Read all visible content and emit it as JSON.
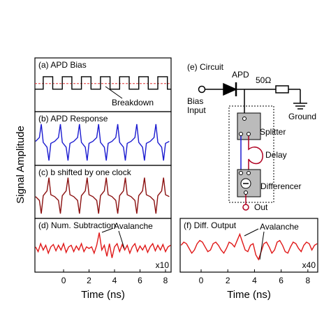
{
  "figure": {
    "y_label": "Signal Amplitude"
  },
  "chart_data": [
    {
      "type": "line",
      "label": "(a) APD Bias",
      "annotation": "Breakdown",
      "x": [
        -2.25,
        -1.6,
        -1.6,
        -0.85,
        -0.85,
        -0.1,
        -0.1,
        0.65,
        0.65,
        1.4,
        1.4,
        2.15,
        2.15,
        2.9,
        2.9,
        3.65,
        3.65,
        4.4,
        4.4,
        5.15,
        5.15,
        5.9,
        5.9,
        6.65,
        6.65,
        7.4,
        7.4,
        8.15,
        8.15,
        8.44
      ],
      "series": [
        {
          "color": "#000000",
          "values": [
            0,
            0,
            1,
            1,
            0,
            0,
            1,
            1,
            0,
            0,
            1,
            1,
            0,
            0,
            1,
            1,
            0,
            0,
            1,
            1,
            0,
            0,
            1,
            1,
            0,
            0,
            1,
            1,
            0,
            0
          ]
        }
      ],
      "threshold": 0.45,
      "threshold_color": "#e03030",
      "xlim": [
        -2.25,
        8.44
      ],
      "ylim": [
        -1.8,
        2.5
      ]
    },
    {
      "type": "line",
      "label": "(b) APD Response",
      "x": [
        -2.2,
        -1.9,
        -1.75,
        -1.6,
        -1.3,
        -1.15,
        -1.0,
        -0.7,
        -0.4,
        -0.25,
        -0.1,
        0.2,
        0.35,
        0.5,
        0.8,
        1.1,
        1.25,
        1.4,
        1.7,
        1.85,
        2.0,
        2.3,
        2.6,
        2.75,
        2.9,
        3.2,
        3.35,
        3.5,
        3.8,
        4.1,
        4.25,
        4.4,
        4.7,
        4.85,
        5.0,
        5.3,
        5.6,
        5.75,
        5.9,
        6.2,
        6.35,
        6.5,
        6.8,
        7.1,
        7.25,
        7.4,
        7.7,
        7.85,
        8.0,
        8.3
      ],
      "series": [
        {
          "color": "#1a1ad0",
          "values": [
            0.05,
            0.25,
            0.95,
            0,
            -0.25,
            -0.95,
            -0.05,
            0.05,
            0.25,
            0.95,
            0,
            -0.25,
            -0.95,
            -0.05,
            0.05,
            0.25,
            0.95,
            0,
            -0.25,
            -0.95,
            -0.05,
            0.05,
            0.25,
            0.95,
            0,
            -0.25,
            -0.95,
            -0.05,
            0.05,
            0.25,
            0.95,
            0,
            -0.25,
            -0.95,
            -0.05,
            0.05,
            0.25,
            0.95,
            0,
            -0.25,
            -0.95,
            -0.05,
            0.05,
            0.25,
            0.95,
            0,
            -0.25,
            -0.95,
            -0.05,
            0.05
          ]
        }
      ],
      "xlim": [
        -2.25,
        8.44
      ],
      "ylim": [
        -1.2,
        1.6
      ]
    },
    {
      "type": "line",
      "label": "(c) b shifted by one clock",
      "x": [
        -2.2,
        -1.9,
        -1.75,
        -1.6,
        -1.3,
        -1.15,
        -1.0,
        -0.7,
        -0.4,
        -0.25,
        -0.1,
        0.2,
        0.35,
        0.5,
        0.8,
        1.1,
        1.25,
        1.4,
        1.7,
        1.85,
        2.0,
        2.3,
        2.6,
        2.75,
        2.9,
        3.2,
        3.35,
        3.5,
        3.8,
        4.1,
        4.25,
        4.4,
        4.7,
        4.85,
        5.0,
        5.3,
        5.6,
        5.75,
        5.9,
        6.2,
        6.35,
        6.5,
        6.8,
        7.1,
        7.25,
        7.4,
        7.7,
        7.85,
        8.0,
        8.3
      ],
      "series": [
        {
          "color": "#8b1010",
          "values": [
            -0.05,
            -0.25,
            -0.95,
            0,
            0.25,
            0.95,
            0.05,
            -0.05,
            -0.25,
            -0.95,
            0,
            0.25,
            0.95,
            0.05,
            -0.05,
            -0.25,
            -0.95,
            0,
            0.25,
            0.95,
            0.05,
            -0.05,
            -0.25,
            -0.95,
            0,
            0.25,
            0.95,
            0.05,
            -0.05,
            -0.25,
            -0.95,
            0,
            0.25,
            0.95,
            0.05,
            -0.05,
            -0.25,
            -0.95,
            0,
            0.25,
            0.95,
            0.05,
            -0.05,
            -0.25,
            -0.95,
            0,
            0.25,
            0.95,
            0.05,
            -0.05
          ]
        }
      ],
      "xlim": [
        -2.25,
        8.44
      ],
      "ylim": [
        -1.2,
        1.6
      ]
    },
    {
      "type": "line",
      "label": "(d) Num. Subtraction",
      "annotation": "Avalanche",
      "scale_label": "x10",
      "x_label": "Time (ns)",
      "x": [
        -2.2,
        -2.0,
        -1.8,
        -1.6,
        -1.4,
        -1.2,
        -1.0,
        -0.8,
        -0.6,
        -0.4,
        -0.2,
        0,
        0.2,
        0.4,
        0.6,
        0.8,
        1.0,
        1.2,
        1.4,
        1.6,
        1.8,
        2.0,
        2.2,
        2.4,
        2.6,
        2.8,
        3.0,
        3.2,
        3.4,
        3.6,
        3.8,
        4.0,
        4.2,
        4.4,
        4.6,
        4.8,
        5.0,
        5.2,
        5.4,
        5.6,
        5.8,
        6.0,
        6.2,
        6.4,
        6.6,
        6.8,
        7.0,
        7.2,
        7.4,
        7.6,
        7.8,
        8.0,
        8.2,
        8.4
      ],
      "series": [
        {
          "color": "#e01818",
          "values": [
            0.1,
            -0.2,
            0.3,
            -0.1,
            0.2,
            -0.3,
            0.1,
            0.25,
            -0.15,
            0.2,
            -0.1,
            0.3,
            -0.25,
            0.1,
            0.2,
            -0.2,
            0.15,
            -0.1,
            0.3,
            -0.2,
            0.1,
            0.0,
            0.1,
            -0.3,
            0.2,
            1.0,
            -0.1,
            0.2,
            -0.5,
            0.3,
            -0.6,
            0.1,
            0.3,
            -0.2,
            0.25,
            -0.1,
            0.2,
            -0.3,
            0.1,
            0.3,
            -0.2,
            0.15,
            -0.1,
            0.2,
            -0.25,
            0.1,
            0.3,
            -0.15,
            0.2,
            -0.1,
            0.25,
            -0.2,
            0.1,
            0.2
          ]
        }
      ],
      "xlim": [
        -2.25,
        8.44
      ],
      "ylim": [
        -1.5,
        1.9
      ],
      "xticks": [
        0,
        2,
        4,
        6,
        8
      ]
    },
    {
      "type": "line",
      "label": "(f) Diff. Output",
      "annotation": "Avalanche",
      "scale_label": "x40",
      "x_label": "Time (ns)",
      "x": [
        -1.5,
        -1.3,
        -1.1,
        -0.9,
        -0.7,
        -0.5,
        -0.3,
        -0.1,
        0.1,
        0.3,
        0.5,
        0.7,
        0.9,
        1.1,
        1.3,
        1.5,
        1.7,
        1.9,
        2.1,
        2.3,
        2.5,
        2.7,
        2.9,
        3.1,
        3.3,
        3.5,
        3.7,
        3.9,
        4.1,
        4.3,
        4.5,
        4.7,
        4.9,
        5.1,
        5.3,
        5.5,
        5.7,
        5.9,
        6.1,
        6.3,
        6.5,
        6.7,
        6.9,
        7.1,
        7.3,
        7.5,
        7.7,
        7.9,
        8.1,
        8.3,
        8.5,
        8.7
      ],
      "series": [
        {
          "color": "#e01818",
          "values": [
            0.2,
            0.4,
            0.3,
            0.0,
            -0.3,
            -0.1,
            0.3,
            0.5,
            0.4,
            0.1,
            -0.2,
            -0.1,
            0.3,
            0.4,
            0.2,
            -0.1,
            -0.3,
            0.0,
            0.4,
            0.3,
            0.1,
            0.5,
            0.9,
            0.4,
            -0.1,
            -0.2,
            0.2,
            0.3,
            -0.4,
            -0.7,
            -0.2,
            0.3,
            0.4,
            0.1,
            -0.3,
            -0.1,
            0.4,
            0.5,
            0.2,
            -0.2,
            -0.3,
            0.1,
            0.4,
            0.3,
            0.0,
            -0.2,
            0.2,
            0.4,
            0.3,
            -0.1,
            0.2,
            0.3
          ]
        }
      ],
      "xlim": [
        -1.57,
        8.74
      ],
      "ylim": [
        -1.5,
        1.9
      ],
      "xticks": [
        0,
        2,
        4,
        6,
        8
      ]
    }
  ],
  "diagram": {
    "title": "(e) Circuit",
    "apd": "APD",
    "resistor": "50Ω",
    "bias_input": [
      "Bias",
      "Input"
    ],
    "ground": "Ground",
    "splitter": "Splitter",
    "delay": "Delay",
    "differencer": "Differencer",
    "out": "Out"
  }
}
